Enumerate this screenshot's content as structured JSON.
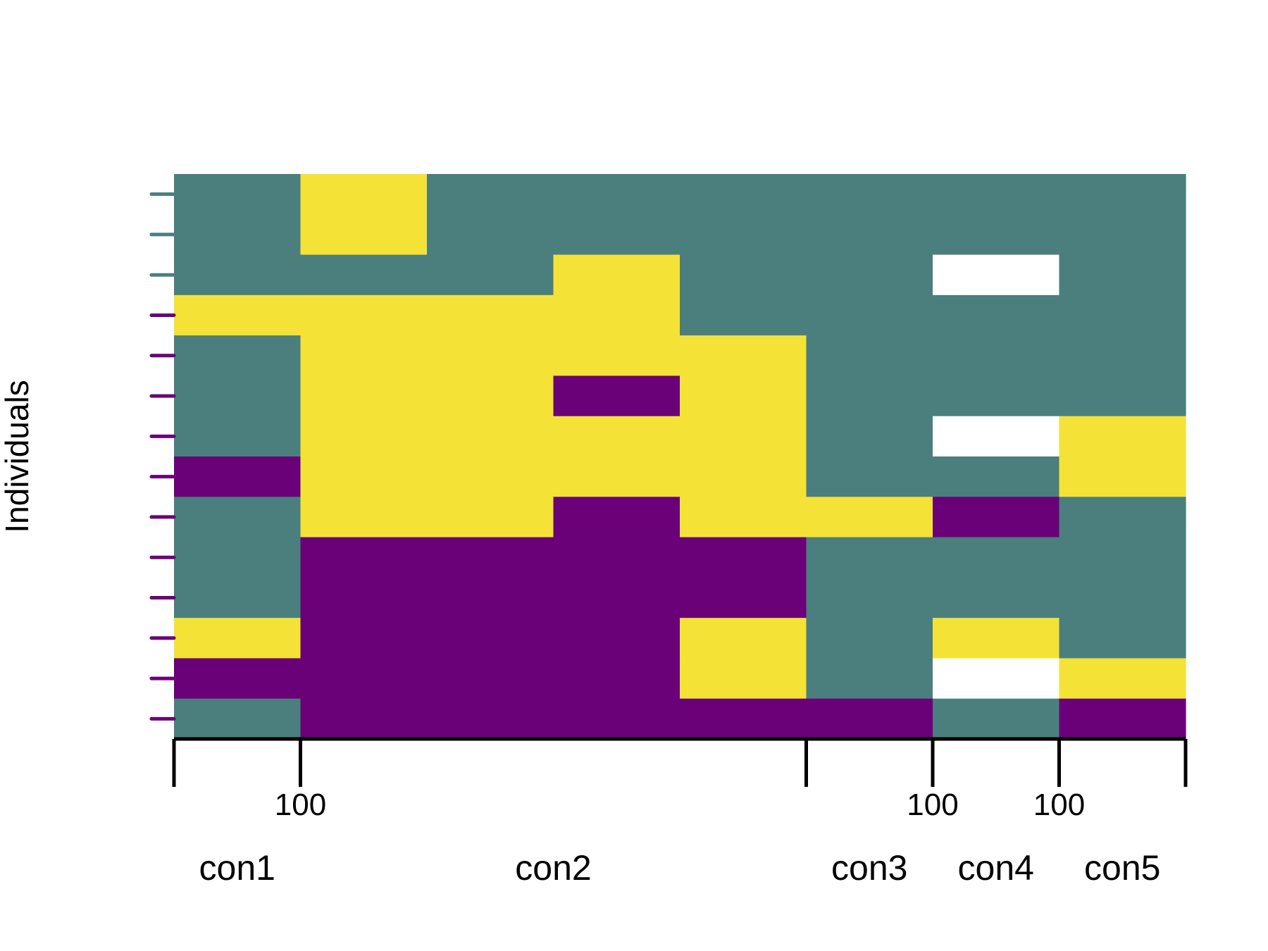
{
  "chart_data": {
    "type": "heatmap",
    "ylabel": "Individuals",
    "colors": {
      "teal": "#4a7f7e",
      "yellow": "#f5e236",
      "purple": "#6a0178",
      "missing": "#ffffff",
      "axis": "#000000"
    },
    "x_sections": [
      {
        "label": "con1",
        "columns": 1,
        "tick_value": "100"
      },
      {
        "label": "con2",
        "columns": 4,
        "tick_value": ""
      },
      {
        "label": "con3",
        "columns": 1,
        "tick_value": "100"
      },
      {
        "label": "con4",
        "columns": 1,
        "tick_value": "100"
      },
      {
        "label": "con5",
        "columns": 1,
        "tick_value": ""
      }
    ],
    "row_label_colors": [
      "teal",
      "teal",
      "teal",
      "purple",
      "purple",
      "purple",
      "purple",
      "purple",
      "purple",
      "purple",
      "purple",
      "purple",
      "purple",
      "purple"
    ],
    "matrix": [
      [
        "teal",
        "yellow",
        "teal",
        "teal",
        "teal",
        "teal",
        "teal",
        "teal"
      ],
      [
        "teal",
        "yellow",
        "teal",
        "teal",
        "teal",
        "teal",
        "teal",
        "teal"
      ],
      [
        "teal",
        "teal",
        "teal",
        "yellow",
        "teal",
        "teal",
        "missing",
        "teal"
      ],
      [
        "yellow",
        "yellow",
        "yellow",
        "yellow",
        "teal",
        "teal",
        "teal",
        "teal"
      ],
      [
        "teal",
        "yellow",
        "yellow",
        "yellow",
        "yellow",
        "teal",
        "teal",
        "teal"
      ],
      [
        "teal",
        "yellow",
        "yellow",
        "purple",
        "yellow",
        "teal",
        "teal",
        "teal"
      ],
      [
        "teal",
        "yellow",
        "yellow",
        "yellow",
        "yellow",
        "teal",
        "missing",
        "yellow"
      ],
      [
        "purple",
        "yellow",
        "yellow",
        "yellow",
        "yellow",
        "teal",
        "teal",
        "yellow"
      ],
      [
        "teal",
        "yellow",
        "yellow",
        "purple",
        "yellow",
        "yellow",
        "purple",
        "teal"
      ],
      [
        "teal",
        "purple",
        "purple",
        "purple",
        "purple",
        "teal",
        "teal",
        "teal"
      ],
      [
        "teal",
        "purple",
        "purple",
        "purple",
        "purple",
        "teal",
        "teal",
        "teal"
      ],
      [
        "yellow",
        "purple",
        "purple",
        "purple",
        "yellow",
        "teal",
        "yellow",
        "teal"
      ],
      [
        "purple",
        "purple",
        "purple",
        "purple",
        "yellow",
        "teal",
        "missing",
        "yellow"
      ],
      [
        "teal",
        "purple",
        "purple",
        "purple",
        "purple",
        "purple",
        "teal",
        "purple"
      ]
    ]
  }
}
